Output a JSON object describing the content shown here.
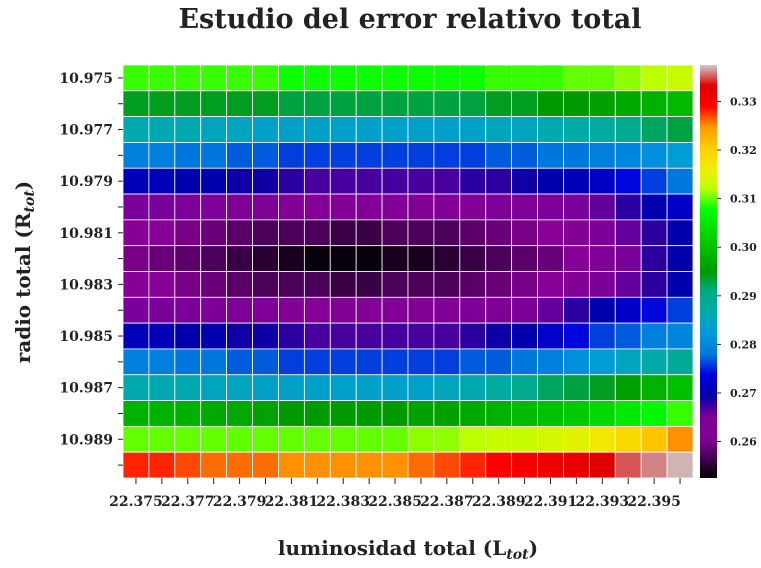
{
  "chart_data": {
    "type": "heatmap",
    "title": "Estudio del error relativo total",
    "xlabel": {
      "main": "luminosidad total (L",
      "sub": "tot",
      "close": ")"
    },
    "ylabel": {
      "main": "radio total (R",
      "sub": "tot",
      "close": ")"
    },
    "x": [
      22.375,
      22.376,
      22.377,
      22.378,
      22.379,
      22.38,
      22.381,
      22.382,
      22.383,
      22.384,
      22.385,
      22.386,
      22.387,
      22.388,
      22.389,
      22.39,
      22.391,
      22.392,
      22.393,
      22.394,
      22.395,
      22.396
    ],
    "y": [
      10.975,
      10.976,
      10.977,
      10.978,
      10.979,
      10.98,
      10.981,
      10.982,
      10.983,
      10.984,
      10.985,
      10.986,
      10.987,
      10.988,
      10.989,
      10.99
    ],
    "x_tick_labels": [
      "22.375",
      "22.377",
      "22.379",
      "22.381",
      "22.383",
      "22.385",
      "22.387",
      "22.389",
      "22.391",
      "22.393",
      "22.395"
    ],
    "y_tick_labels": [
      "10.975",
      "10.977",
      "10.979",
      "10.981",
      "10.983",
      "10.985",
      "10.987",
      "10.989"
    ],
    "colorbar": {
      "colormap": "nipy_spectral",
      "vmin": 0.2525,
      "vmax": 0.3375,
      "ticks": [
        "0.26",
        "0.27",
        "0.28",
        "0.29",
        "0.30",
        "0.31",
        "0.32",
        "0.33"
      ]
    },
    "values": [
      [
        0.309,
        0.309,
        0.309,
        0.309,
        0.309,
        0.309,
        0.308,
        0.308,
        0.308,
        0.308,
        0.308,
        0.308,
        0.308,
        0.308,
        0.309,
        0.309,
        0.309,
        0.31,
        0.31,
        0.311,
        0.312,
        0.313
      ],
      [
        0.294,
        0.294,
        0.294,
        0.294,
        0.294,
        0.294,
        0.293,
        0.293,
        0.293,
        0.293,
        0.293,
        0.293,
        0.293,
        0.293,
        0.294,
        0.294,
        0.295,
        0.295,
        0.296,
        0.297,
        0.298,
        0.299
      ],
      [
        0.286,
        0.286,
        0.286,
        0.285,
        0.285,
        0.284,
        0.284,
        0.284,
        0.284,
        0.284,
        0.284,
        0.284,
        0.284,
        0.284,
        0.285,
        0.285,
        0.286,
        0.287,
        0.288,
        0.29,
        0.292,
        0.293
      ],
      [
        0.279,
        0.279,
        0.278,
        0.278,
        0.277,
        0.277,
        0.276,
        0.276,
        0.276,
        0.276,
        0.276,
        0.276,
        0.276,
        0.276,
        0.277,
        0.277,
        0.278,
        0.278,
        0.279,
        0.28,
        0.281,
        0.283
      ],
      [
        0.271,
        0.271,
        0.27,
        0.27,
        0.269,
        0.269,
        0.268,
        0.267,
        0.267,
        0.267,
        0.267,
        0.267,
        0.267,
        0.268,
        0.268,
        0.269,
        0.27,
        0.271,
        0.272,
        0.274,
        0.276,
        0.278
      ],
      [
        0.265,
        0.265,
        0.264,
        0.264,
        0.263,
        0.263,
        0.262,
        0.262,
        0.262,
        0.262,
        0.262,
        0.262,
        0.262,
        0.262,
        0.263,
        0.263,
        0.264,
        0.265,
        0.266,
        0.268,
        0.27,
        0.272
      ],
      [
        0.261,
        0.261,
        0.26,
        0.259,
        0.258,
        0.257,
        0.257,
        0.257,
        0.256,
        0.256,
        0.257,
        0.257,
        0.257,
        0.258,
        0.259,
        0.26,
        0.261,
        0.262,
        0.264,
        0.266,
        0.268,
        0.27
      ],
      [
        0.26,
        0.259,
        0.258,
        0.257,
        0.256,
        0.255,
        0.254,
        0.253,
        0.253,
        0.253,
        0.254,
        0.254,
        0.255,
        0.256,
        0.257,
        0.258,
        0.259,
        0.261,
        0.263,
        0.265,
        0.268,
        0.27
      ],
      [
        0.261,
        0.261,
        0.26,
        0.259,
        0.258,
        0.257,
        0.257,
        0.257,
        0.256,
        0.256,
        0.257,
        0.257,
        0.257,
        0.258,
        0.259,
        0.26,
        0.261,
        0.262,
        0.264,
        0.266,
        0.268,
        0.27
      ],
      [
        0.265,
        0.265,
        0.264,
        0.264,
        0.263,
        0.263,
        0.262,
        0.262,
        0.262,
        0.262,
        0.262,
        0.262,
        0.262,
        0.263,
        0.263,
        0.264,
        0.266,
        0.268,
        0.27,
        0.272,
        0.274,
        0.276
      ],
      [
        0.271,
        0.271,
        0.27,
        0.27,
        0.269,
        0.269,
        0.268,
        0.267,
        0.267,
        0.267,
        0.267,
        0.267,
        0.267,
        0.268,
        0.269,
        0.27,
        0.272,
        0.274,
        0.276,
        0.277,
        0.279,
        0.28
      ],
      [
        0.279,
        0.279,
        0.278,
        0.278,
        0.277,
        0.277,
        0.276,
        0.276,
        0.276,
        0.276,
        0.276,
        0.276,
        0.276,
        0.277,
        0.277,
        0.278,
        0.279,
        0.281,
        0.283,
        0.285,
        0.287,
        0.289
      ],
      [
        0.286,
        0.286,
        0.286,
        0.285,
        0.285,
        0.284,
        0.284,
        0.284,
        0.284,
        0.284,
        0.284,
        0.284,
        0.285,
        0.286,
        0.288,
        0.29,
        0.292,
        0.293,
        0.294,
        0.296,
        0.298,
        0.3
      ],
      [
        0.298,
        0.298,
        0.298,
        0.297,
        0.297,
        0.296,
        0.295,
        0.295,
        0.295,
        0.295,
        0.295,
        0.296,
        0.296,
        0.297,
        0.298,
        0.299,
        0.3,
        0.301,
        0.303,
        0.305,
        0.307,
        0.309
      ],
      [
        0.31,
        0.31,
        0.31,
        0.31,
        0.31,
        0.31,
        0.31,
        0.31,
        0.31,
        0.31,
        0.31,
        0.311,
        0.311,
        0.312,
        0.313,
        0.313,
        0.314,
        0.315,
        0.317,
        0.319,
        0.321,
        0.325
      ],
      [
        0.328,
        0.328,
        0.327,
        0.326,
        0.326,
        0.326,
        0.325,
        0.325,
        0.325,
        0.325,
        0.325,
        0.326,
        0.327,
        0.328,
        0.329,
        0.33,
        0.331,
        0.332,
        0.333,
        0.335,
        0.336,
        0.337
      ]
    ]
  }
}
